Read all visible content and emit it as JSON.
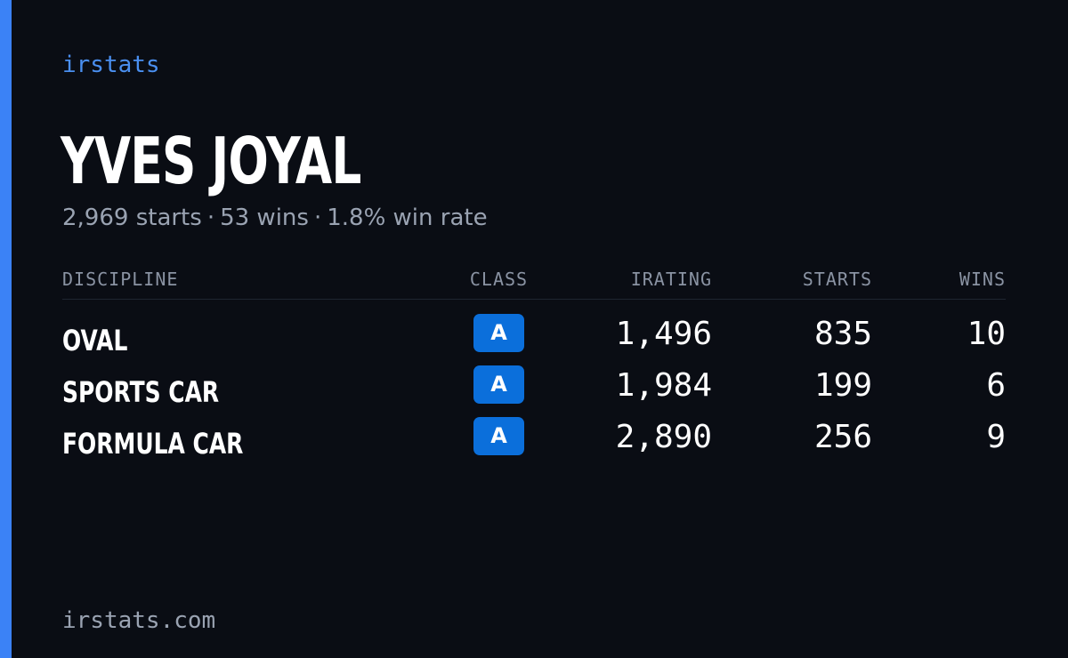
{
  "brand": "irstats",
  "driver": {
    "name": "YVES JOYAL",
    "starts_text": "2,969 starts",
    "wins_text": "53 wins",
    "win_rate_text": "1.8% win rate",
    "separator": "·"
  },
  "table": {
    "headers": {
      "discipline": "DISCIPLINE",
      "class": "CLASS",
      "irating": "IRATING",
      "starts": "STARTS",
      "wins": "WINS"
    },
    "rows": [
      {
        "discipline": "OVAL",
        "class": "A",
        "irating": "1,496",
        "starts": "835",
        "wins": "10"
      },
      {
        "discipline": "SPORTS CAR",
        "class": "A",
        "irating": "1,984",
        "starts": "199",
        "wins": "6"
      },
      {
        "discipline": "FORMULA CAR",
        "class": "A",
        "irating": "2,890",
        "starts": "256",
        "wins": "9"
      }
    ]
  },
  "footer": "irstats.com",
  "colors": {
    "background": "#0a0d14",
    "accent": "#3b82f6",
    "badge": "#0b6fdb",
    "muted_text": "#9aa3b2"
  }
}
